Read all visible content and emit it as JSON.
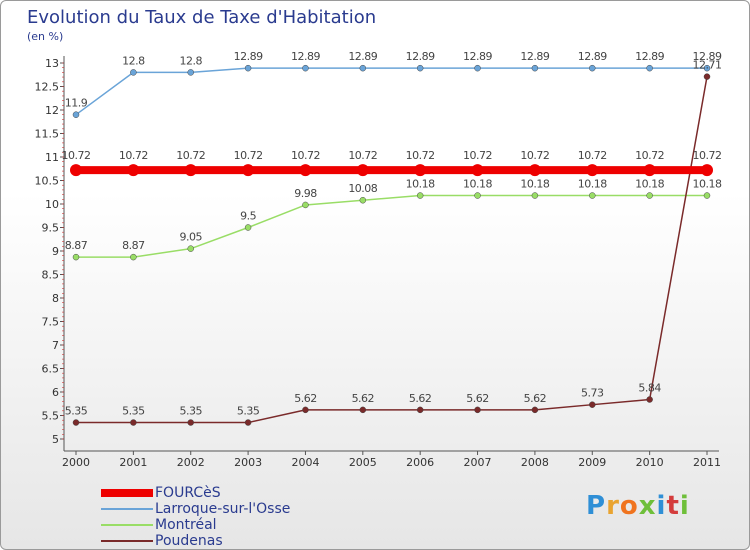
{
  "title": "Evolution du Taux de Taxe d'Habitation",
  "unit": "(en %)",
  "logo": {
    "text": "Proxiti",
    "colors": [
      "#2f8fd6",
      "#e9a431",
      "#f0741f",
      "#6fbf3a",
      "#2f8fd6",
      "#d43c3c",
      "#6fbf3a"
    ]
  },
  "chart_data": {
    "type": "line",
    "x": [
      "2000",
      "2001",
      "2002",
      "2003",
      "2004",
      "2005",
      "2006",
      "2007",
      "2008",
      "2009",
      "2010",
      "2011"
    ],
    "ylim": [
      5,
      13
    ],
    "yticks": [
      "5",
      "5.5",
      "6",
      "6.5",
      "7",
      "7.5",
      "8",
      "8.5",
      "9",
      "9.5",
      "10",
      "10.5",
      "11",
      "11.5",
      "12",
      "12.5",
      "13"
    ],
    "grid": false,
    "legend_position": "bottom-left",
    "series": [
      {
        "name": "FOURCèS",
        "color": "#ee0000",
        "values": [
          10.72,
          10.72,
          10.72,
          10.72,
          10.72,
          10.72,
          10.72,
          10.72,
          10.72,
          10.72,
          10.72,
          10.72
        ],
        "labels": [
          "10.72",
          "10.72",
          "10.72",
          "10.72",
          "10.72",
          "10.72",
          "10.72",
          "10.72",
          "10.72",
          "10.72",
          "10.72",
          "10.72"
        ]
      },
      {
        "name": "Larroque-sur-l'Osse",
        "color": "#6aa4d8",
        "values": [
          11.9,
          12.8,
          12.8,
          12.89,
          12.89,
          12.89,
          12.89,
          12.89,
          12.89,
          12.89,
          12.89,
          12.89
        ],
        "labels": [
          "11.9",
          "12.8",
          "12.8",
          "12.89",
          "12.89",
          "12.89",
          "12.89",
          "12.89",
          "12.89",
          "12.89",
          "12.89",
          "12.89"
        ]
      },
      {
        "name": "Montréal",
        "color": "#99dd66",
        "values": [
          8.87,
          8.87,
          9.05,
          9.5,
          9.98,
          10.08,
          10.18,
          10.18,
          10.18,
          10.18,
          10.18,
          10.18
        ],
        "labels": [
          "8.87",
          "8.87",
          "9.05",
          "9.5",
          "9.98",
          "10.08",
          "10.18",
          "10.18",
          "10.18",
          "10.18",
          "10.18",
          "10.18"
        ]
      },
      {
        "name": "Poudenas",
        "color": "#7a2a2a",
        "values": [
          5.35,
          5.35,
          5.35,
          5.35,
          5.62,
          5.62,
          5.62,
          5.62,
          5.62,
          5.73,
          5.84,
          12.71
        ],
        "labels": [
          "5.35",
          "5.35",
          "5.35",
          "5.35",
          "5.62",
          "5.62",
          "5.62",
          "5.62",
          "5.62",
          "5.73",
          "5.84",
          "12.71"
        ]
      }
    ]
  }
}
